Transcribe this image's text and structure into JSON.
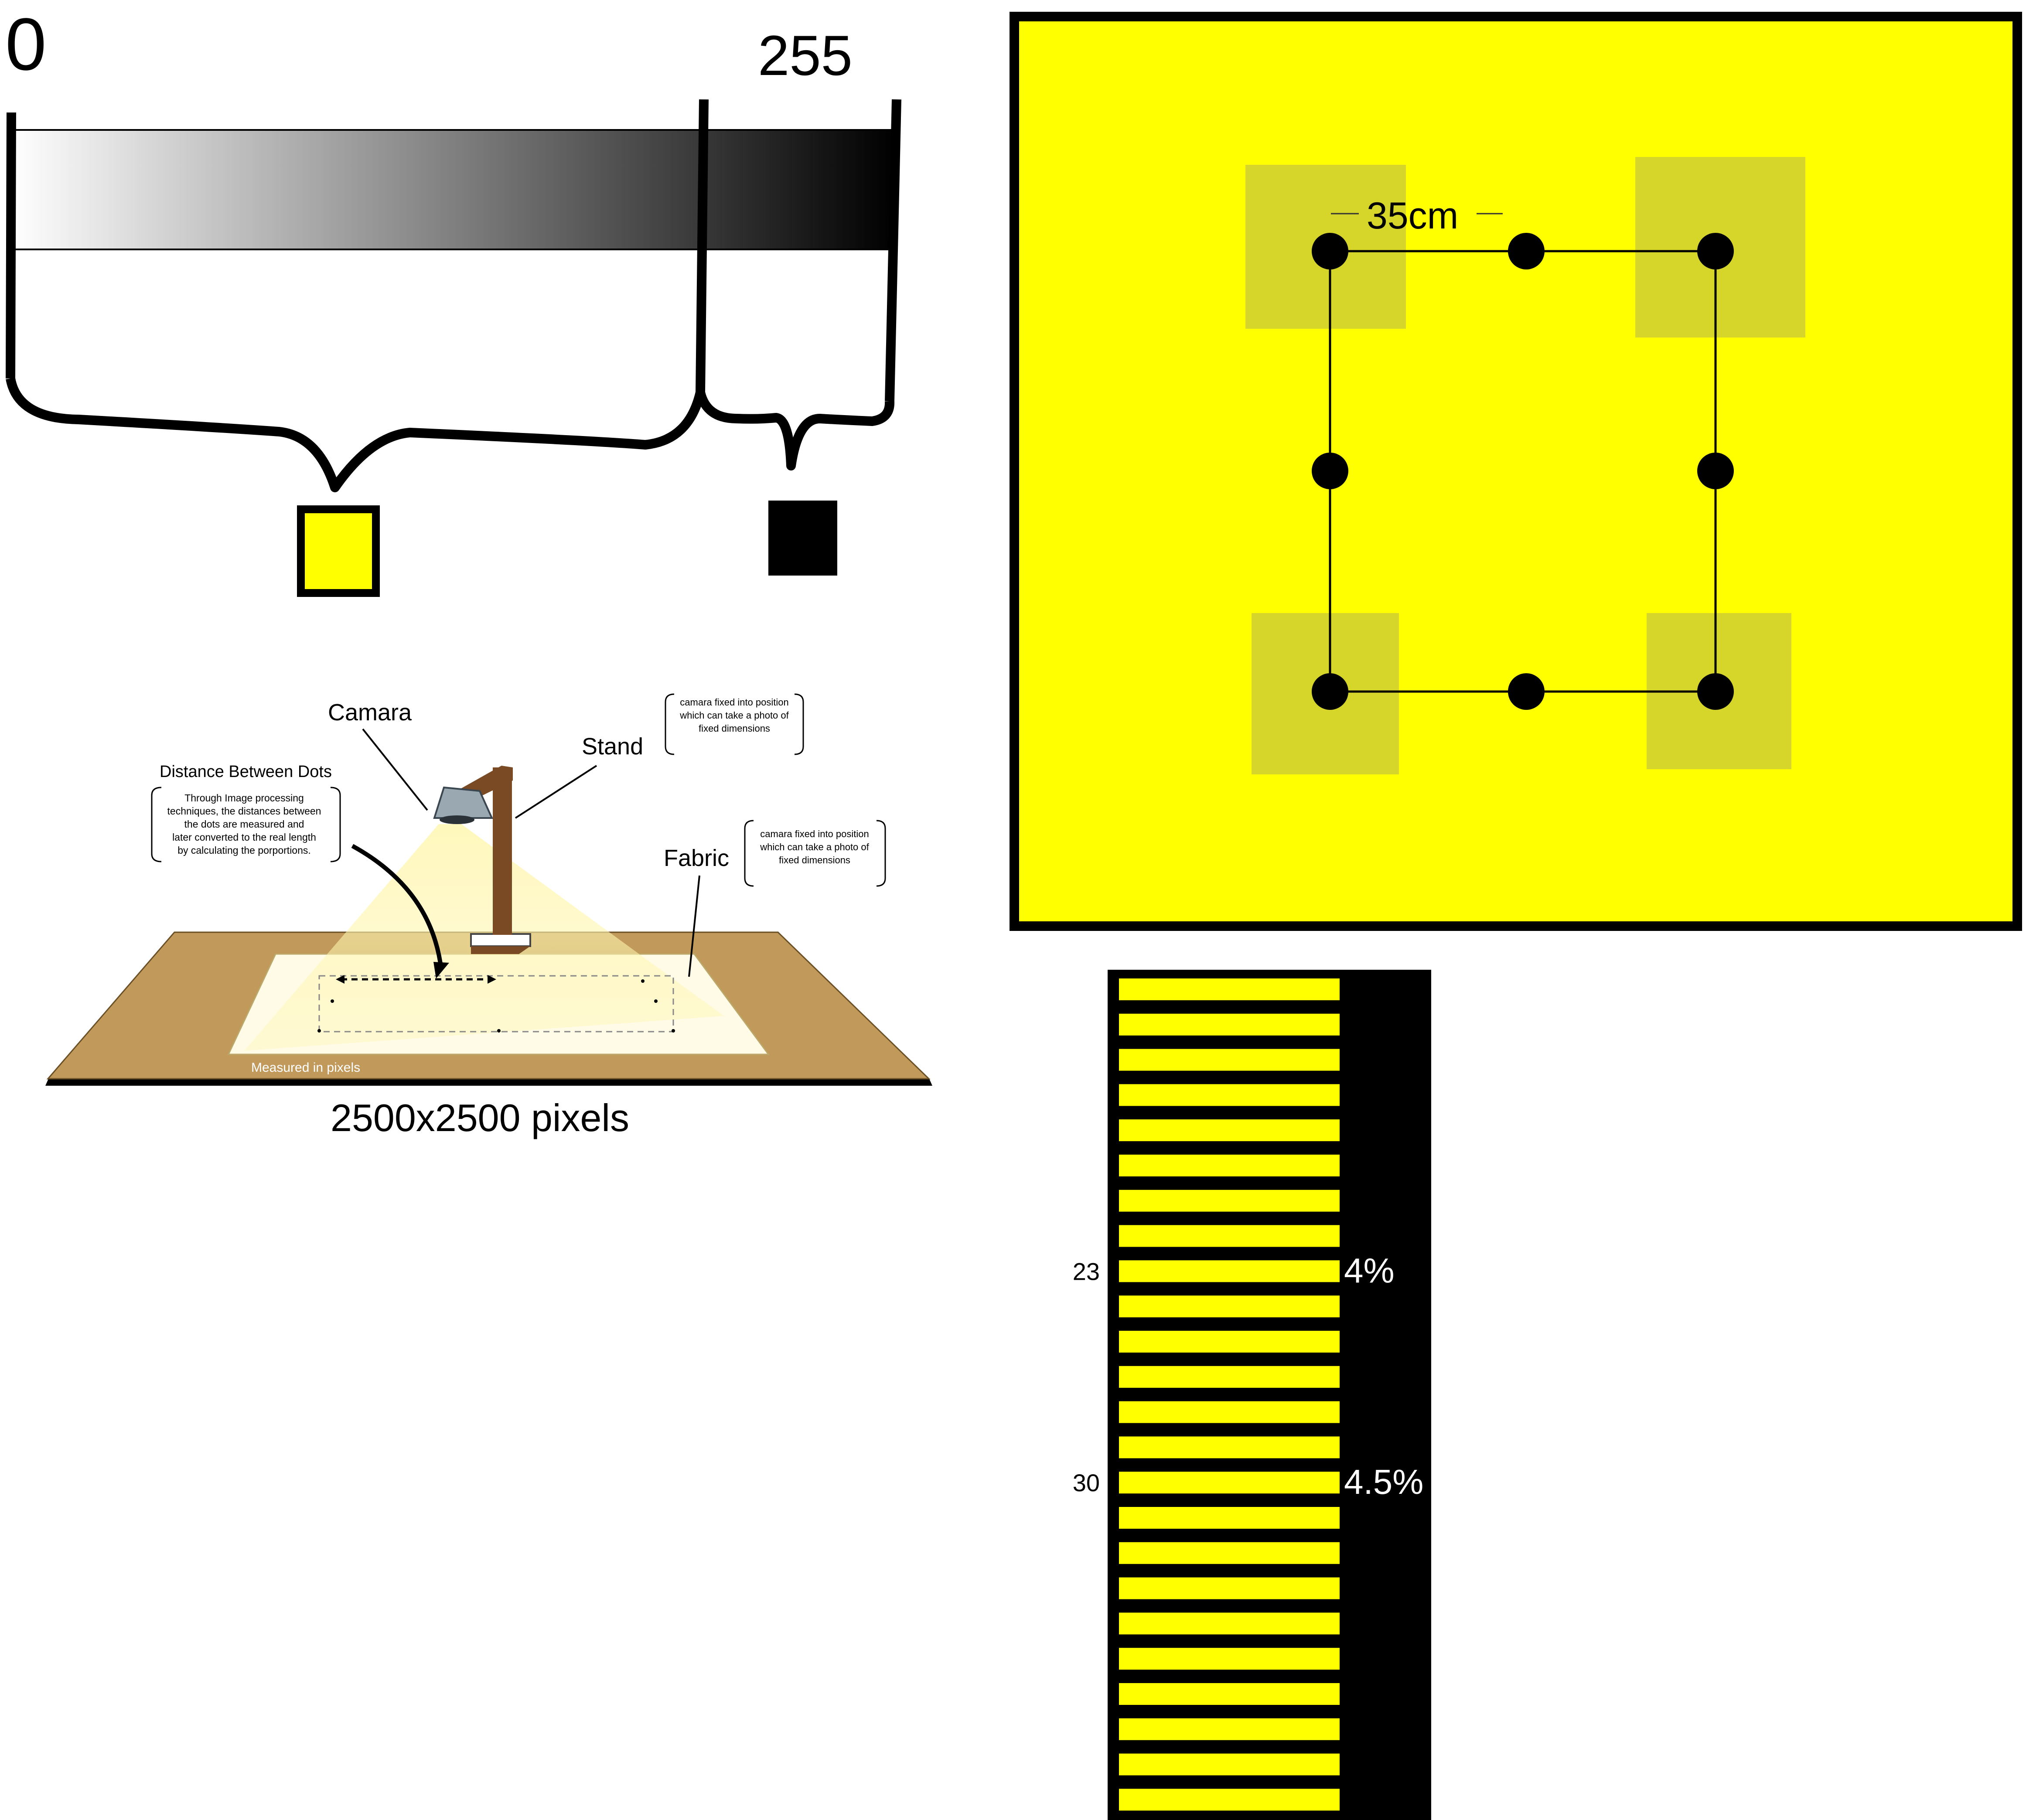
{
  "gradient_bar": {
    "min_label": "0",
    "max_label": "255",
    "color_light": "#ffffff",
    "color_dark": "#000000",
    "threshold_fraction": 0.78
  },
  "output_swatches": {
    "low_color": "#ffff00",
    "high_color": "#000000"
  },
  "setup": {
    "camera_label": "Camara",
    "stand_label": "Stand",
    "stand_note": [
      "camara fixed into position",
      "which can take a photo of",
      "fixed dimensions"
    ],
    "fabric_label": "Fabric",
    "fabric_note": [
      "camara fixed into position",
      "which can take a photo of",
      "fixed dimensions"
    ],
    "distance_title": "Distance Between Dots",
    "distance_note": [
      "Through Image processing",
      "techniques, the distances between",
      "the dots are measured and",
      "later converted to the real length",
      "by calculating the porportions."
    ],
    "board_caption": "Measured in pixels",
    "resolution_caption": "2500x2500 pixels",
    "colors": {
      "board": "#c19a5b",
      "stand": "#7a4a24",
      "light": "#fff6b0",
      "fabric": "#fffbe6"
    }
  },
  "dot_panel": {
    "distance_label": "35cm",
    "background": "#ffff00",
    "patch_color": "#d6d62a",
    "dot_color": "#000000"
  },
  "stripe_scale": {
    "stripe_count": 24,
    "stripe_color": "#ffff00",
    "background": "#000000",
    "markers": [
      {
        "stripe": 8,
        "value": "23",
        "percent": "4%"
      },
      {
        "stripe": 14,
        "value": "30",
        "percent": "4.5%"
      }
    ]
  }
}
